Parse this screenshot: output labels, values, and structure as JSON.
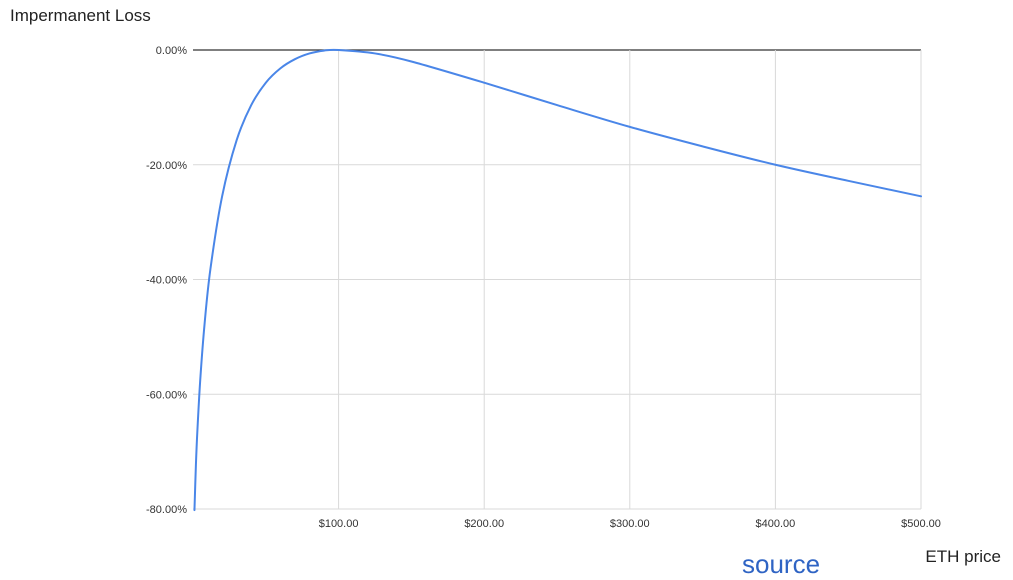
{
  "chart_data": {
    "type": "line",
    "title": "Impermanent Loss",
    "xlabel": "ETH price",
    "ylabel": "",
    "xlim": [
      0,
      500
    ],
    "ylim": [
      -80,
      0
    ],
    "grid": true,
    "legend": "none",
    "x_ticks": [
      100,
      200,
      300,
      400,
      500
    ],
    "x_tick_labels": [
      "$100.00",
      "$200.00",
      "$300.00",
      "$400.00",
      "$500.00"
    ],
    "y_ticks": [
      0,
      -20,
      -40,
      -60,
      -80
    ],
    "y_tick_labels": [
      "0.00%",
      "-20.00%",
      "-40.00%",
      "-60.00%",
      "-80.00%"
    ],
    "series": [
      {
        "color": "#4a86e8",
        "x": [
          1,
          2,
          3,
          5,
          8,
          12,
          20,
          30,
          40,
          50,
          60,
          70,
          80,
          90,
          100,
          125,
          150,
          200,
          250,
          300,
          350,
          400,
          450,
          500
        ],
        "y": [
          -80.2,
          -72.3,
          -66.4,
          -57.4,
          -47.6,
          -38.1,
          -25.5,
          -15.7,
          -9.6,
          -5.7,
          -3.2,
          -1.6,
          -0.6,
          -0.1,
          0.0,
          -0.6,
          -2.0,
          -5.7,
          -9.6,
          -13.4,
          -16.8,
          -20.0,
          -22.8,
          -25.5
        ]
      }
    ]
  },
  "labels": {
    "title": "Impermanent Loss",
    "x_axis": "ETH price",
    "source_link": "source"
  },
  "colors": {
    "line": "#4a86e8",
    "grid": "#d9d9d9",
    "baseline": "#333333",
    "link": "#2f64c4"
  }
}
